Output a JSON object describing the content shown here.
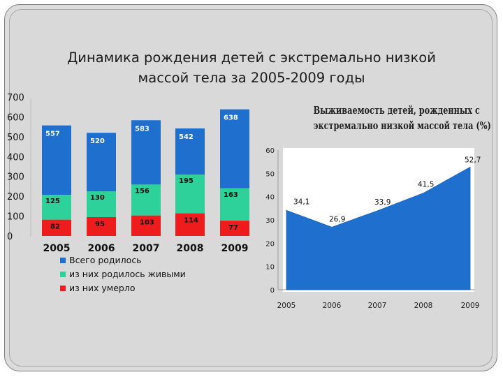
{
  "slide": {
    "title_line1": "Динамика рождения детей с экстремально низкой",
    "title_line2": "массой тела за 2005-2009 годы"
  },
  "chart_data": [
    {
      "type": "bar",
      "categories": [
        "2005",
        "2006",
        "2007",
        "2008",
        "2009"
      ],
      "ylim": [
        0,
        700
      ],
      "yticks": [
        "0",
        "100",
        "200",
        "300",
        "400",
        "500",
        "600",
        "700"
      ],
      "series": [
        {
          "name": "Всего родилось",
          "values": [
            557,
            520,
            583,
            542,
            638
          ],
          "color": "#1f6fcf"
        },
        {
          "name": "из них родилось живыми",
          "values": [
            125,
            130,
            156,
            195,
            163
          ],
          "color": "#2fd19a"
        },
        {
          "name": "из них умерло",
          "values": [
            82,
            95,
            103,
            114,
            77
          ],
          "color": "#ee1c1c"
        }
      ],
      "legend": "bottom-left",
      "grid": false
    },
    {
      "type": "area",
      "title_line1": "Выживаемость детей, рожденных с",
      "title_line2": "экстремально низкой массой тела (%)",
      "x": [
        "2005",
        "2006",
        "2007",
        "2008",
        "2009"
      ],
      "values": [
        34.1,
        26.9,
        33.9,
        41.5,
        52.7
      ],
      "labels": [
        "34,1",
        "26,9",
        "33,9",
        "41,5",
        "52,7"
      ],
      "ylim": [
        0,
        60
      ],
      "yticks": [
        "0",
        "10",
        "20",
        "30",
        "40",
        "50",
        "60"
      ],
      "color": "#1f6fcf",
      "grid": false
    }
  ]
}
